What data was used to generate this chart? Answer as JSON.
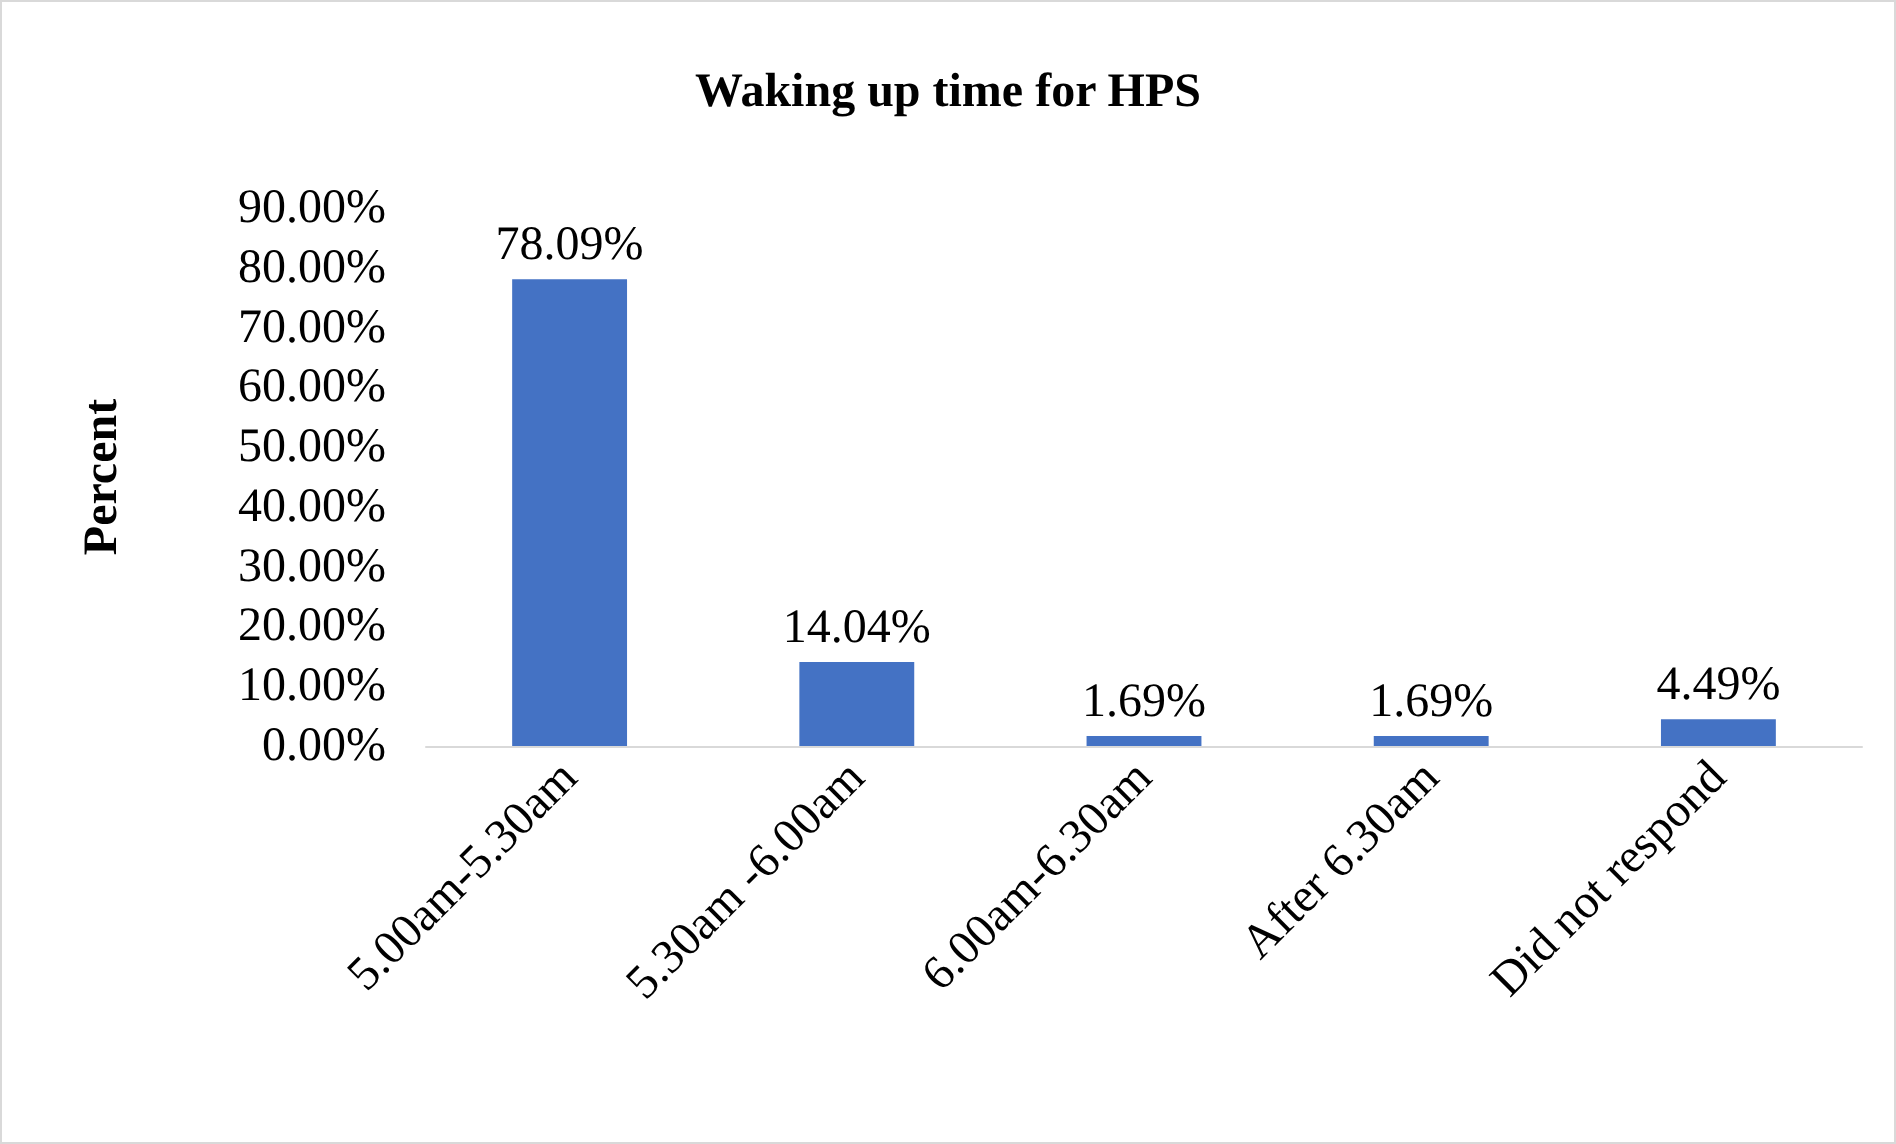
{
  "chart_data": {
    "type": "bar",
    "title": "Waking up time for HPS",
    "ylabel": "Percent",
    "categories": [
      "5.00am-5.30am",
      "5.30am -6.00am",
      "6.00am-6.30am",
      "After 6.30am",
      "Did not respond"
    ],
    "values": [
      78.09,
      14.04,
      1.69,
      1.69,
      4.49
    ],
    "value_labels": [
      "78.09%",
      "14.04%",
      "1.69%",
      "1.69%",
      "4.49%"
    ],
    "color": "#4472c4",
    "ylim": [
      0,
      90
    ],
    "yticks": [
      {
        "value": 0,
        "label": "0.00%"
      },
      {
        "value": 10,
        "label": "10.00%"
      },
      {
        "value": 20,
        "label": "20.00%"
      },
      {
        "value": 30,
        "label": "30.00%"
      },
      {
        "value": 40,
        "label": "40.00%"
      },
      {
        "value": 50,
        "label": "50.00%"
      },
      {
        "value": 60,
        "label": "60.00%"
      },
      {
        "value": 70,
        "label": "70.00%"
      },
      {
        "value": 80,
        "label": "80.00%"
      },
      {
        "value": 90,
        "label": "90.00%"
      }
    ],
    "grid": false
  }
}
